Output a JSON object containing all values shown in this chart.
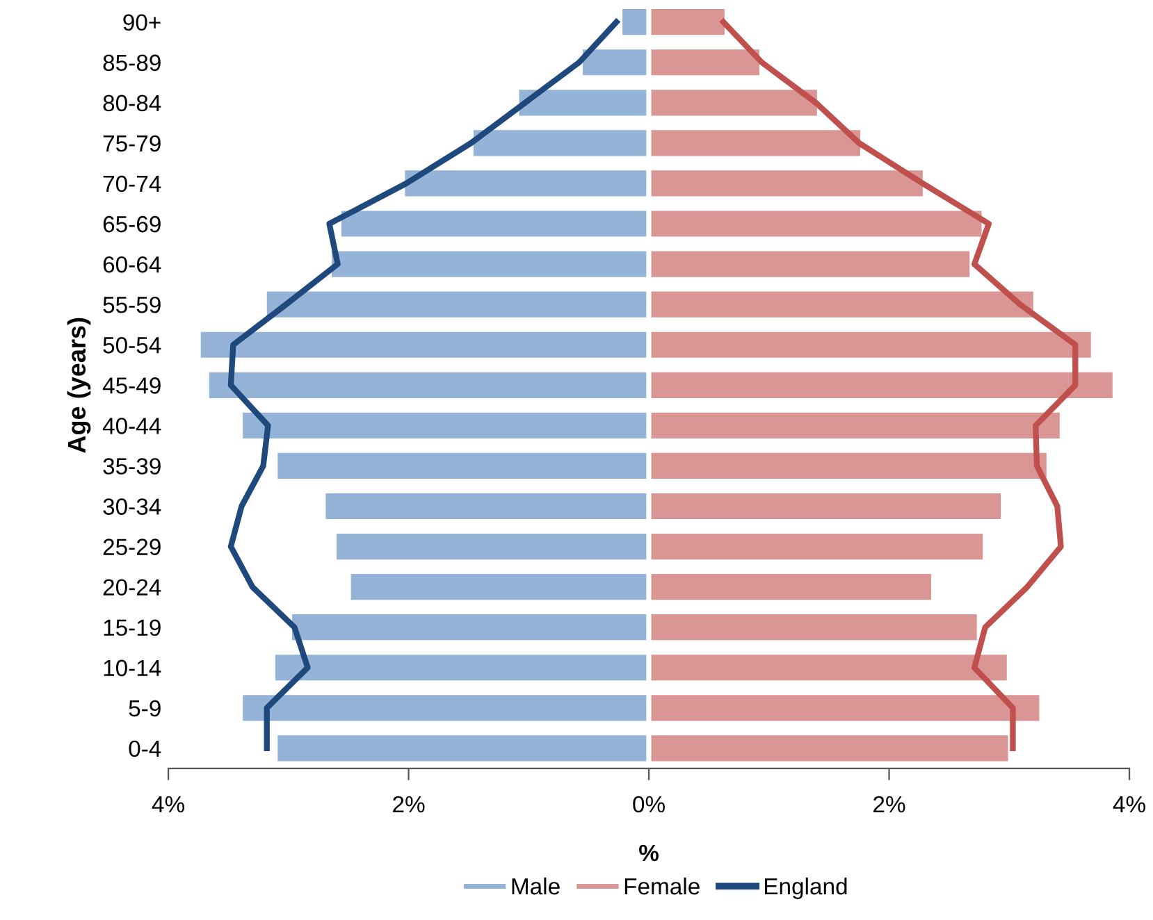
{
  "chart_data": {
    "type": "bar",
    "orientation": "horizontal",
    "ylabel": "Age (years)",
    "xlabel": "%",
    "categories": [
      "90+",
      "85-89",
      "80-84",
      "75-79",
      "70-74",
      "65-69",
      "60-64",
      "55-59",
      "50-54",
      "45-49",
      "40-44",
      "35-39",
      "30-34",
      "25-29",
      "20-24",
      "15-19",
      "10-14",
      "5-9",
      "0-4"
    ],
    "series": [
      {
        "name": "Male",
        "color": "#95b3d7",
        "values": [
          -0.24,
          -0.57,
          -1.1,
          -1.48,
          -2.05,
          -2.58,
          -2.66,
          -3.2,
          -3.75,
          -3.68,
          -3.4,
          -3.11,
          -2.71,
          -2.62,
          -2.5,
          -2.99,
          -3.13,
          -3.4,
          -3.11
        ]
      },
      {
        "name": "Female",
        "color": "#da9694",
        "values": [
          0.65,
          0.94,
          1.42,
          1.78,
          2.3,
          2.79,
          2.69,
          3.22,
          3.7,
          3.88,
          3.44,
          3.33,
          2.95,
          2.8,
          2.37,
          2.75,
          3.0,
          3.27,
          3.01
        ]
      },
      {
        "name": "England",
        "type": "line",
        "color": "#1f497d",
        "values": [
          -0.27,
          -0.58,
          -1.03,
          -1.48,
          -2.02,
          -2.66,
          -2.59,
          -3.02,
          -3.46,
          -3.48,
          -3.17,
          -3.21,
          -3.39,
          -3.48,
          -3.3,
          -2.95,
          -2.84,
          -3.18,
          -3.18
        ]
      },
      {
        "type": "line",
        "color": "#c0504d",
        "values": [
          0.62,
          0.94,
          1.39,
          1.75,
          2.28,
          2.83,
          2.71,
          3.09,
          3.55,
          3.55,
          3.22,
          3.23,
          3.4,
          3.43,
          3.15,
          2.8,
          2.71,
          3.03,
          3.03
        ]
      }
    ],
    "xlim": [
      -4,
      4
    ],
    "xticks": [
      {
        "value": -4,
        "label": "4%"
      },
      {
        "value": -2,
        "label": "2%"
      },
      {
        "value": 0,
        "label": "0%"
      },
      {
        "value": 2,
        "label": "2%"
      },
      {
        "value": 4,
        "label": "4%"
      }
    ],
    "stacked": true,
    "grid": false,
    "legend": "bottom",
    "line_style": "solid",
    "marker": "none"
  }
}
